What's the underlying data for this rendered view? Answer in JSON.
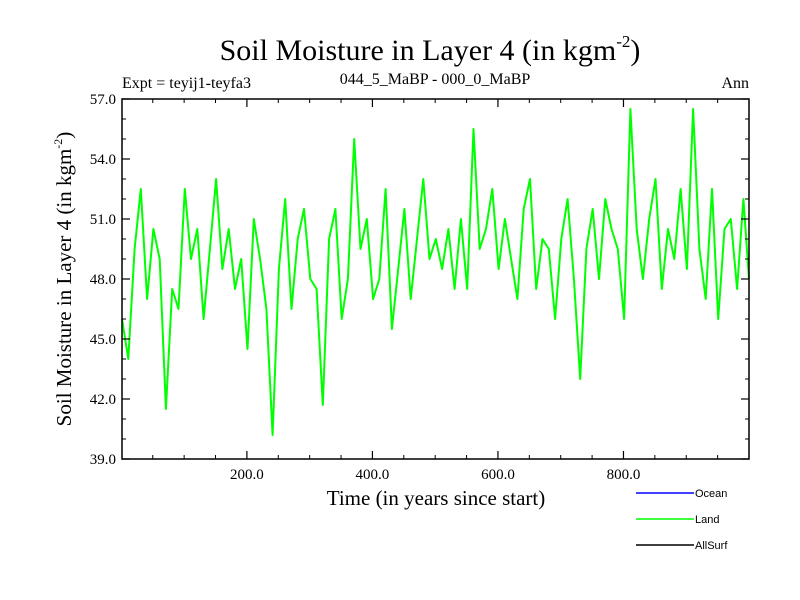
{
  "chart_data": {
    "type": "line",
    "title": "Soil Moisture in Layer 4 (in kgm",
    "title_superscript": "-2",
    "title_close": ")",
    "subtitle_left": "Expt = teyij1-teyfa3",
    "subtitle_center": "044_5_MaBP - 000_0_MaBP",
    "subtitle_right": "Ann",
    "xlabel": "Time (in years since start)",
    "ylabel": "Soil Moisture in Layer 4 (in kgm",
    "ylabel_superscript": "-2",
    "ylabel_close": ")",
    "xlim": [
      1,
      1000
    ],
    "ylim": [
      39.0,
      57.0
    ],
    "xticks": [
      200,
      400,
      600,
      800
    ],
    "xtick_labels": [
      "200.0",
      "400.0",
      "600.0",
      "800.0"
    ],
    "yticks": [
      39,
      42,
      45,
      48,
      51,
      54,
      57
    ],
    "ytick_labels": [
      "39.0",
      "42.0",
      "45.0",
      "48.0",
      "51.0",
      "54.0",
      "57.0"
    ],
    "legend": [
      {
        "name": "Ocean",
        "color": "#0000ff"
      },
      {
        "name": "Land",
        "color": "#00ff00"
      },
      {
        "name": "AllSurf",
        "color": "#000000"
      }
    ],
    "series": [
      {
        "name": "Land",
        "color": "#00ff00",
        "x": [
          1,
          11,
          21,
          31,
          41,
          51,
          61,
          71,
          81,
          91,
          101,
          111,
          121,
          131,
          141,
          151,
          161,
          171,
          181,
          191,
          201,
          211,
          221,
          231,
          241,
          251,
          261,
          271,
          281,
          291,
          301,
          311,
          321,
          331,
          341,
          351,
          361,
          371,
          381,
          391,
          401,
          411,
          421,
          431,
          441,
          451,
          461,
          471,
          481,
          491,
          501,
          511,
          521,
          531,
          541,
          551,
          561,
          571,
          581,
          591,
          601,
          611,
          621,
          631,
          641,
          651,
          661,
          671,
          681,
          691,
          701,
          711,
          721,
          731,
          741,
          751,
          761,
          771,
          781,
          791,
          801,
          811,
          821,
          831,
          841,
          851,
          861,
          871,
          881,
          891,
          901,
          911,
          921,
          931,
          941,
          951,
          961,
          971,
          981,
          991,
          1000
        ],
        "values": [
          46.0,
          44.0,
          49.5,
          52.5,
          47.0,
          50.5,
          49.0,
          41.5,
          47.5,
          46.5,
          52.5,
          49.0,
          50.5,
          46.0,
          49.5,
          53.0,
          48.5,
          50.5,
          47.5,
          49.0,
          44.5,
          51.0,
          49.0,
          46.5,
          40.2,
          48.5,
          52.0,
          46.5,
          50.0,
          51.5,
          48.0,
          47.5,
          41.7,
          50.0,
          51.5,
          46.0,
          48.0,
          55.0,
          49.5,
          51.0,
          47.0,
          48.0,
          52.5,
          45.5,
          48.5,
          51.5,
          47.0,
          50.0,
          53.0,
          49.0,
          50.0,
          48.5,
          50.5,
          47.5,
          51.0,
          47.5,
          55.5,
          49.5,
          50.5,
          52.5,
          48.5,
          51.0,
          49.0,
          47.0,
          51.5,
          53.0,
          47.5,
          50.0,
          49.5,
          46.0,
          50.0,
          52.0,
          48.0,
          43.0,
          49.5,
          51.5,
          48.0,
          52.0,
          50.5,
          49.5,
          46.0,
          56.5,
          50.5,
          48.0,
          51.0,
          53.0,
          47.5,
          50.5,
          49.0,
          52.5,
          48.5,
          56.5,
          49.5,
          47.0,
          52.5,
          46.0,
          50.5,
          51.0,
          47.5,
          52.0,
          48.0
        ]
      }
    ]
  }
}
